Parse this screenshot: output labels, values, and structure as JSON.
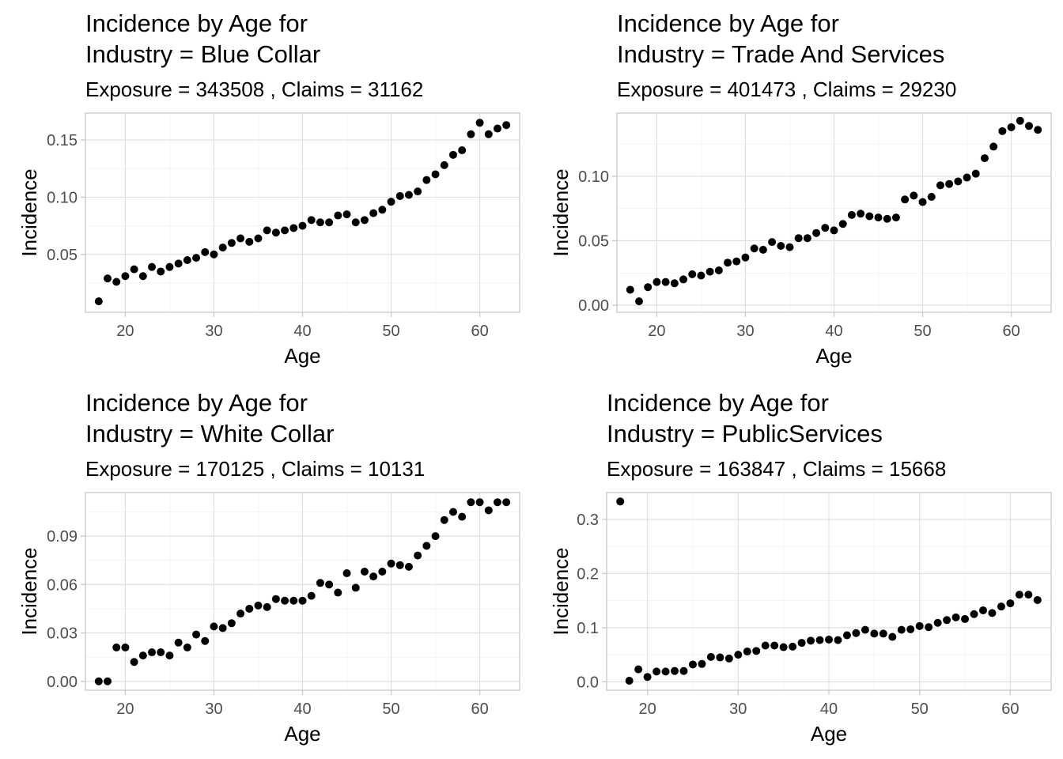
{
  "chart_data": [
    {
      "type": "scatter",
      "title": [
        "Incidence by Age for",
        "Industry = Blue Collar"
      ],
      "subtitle": "Exposure = 343508 , Claims =  31162",
      "xlabel": "Age",
      "ylabel": "Incidence",
      "xlim": [
        15.5,
        64.5
      ],
      "ylim": [
        -0.0006,
        0.1735
      ],
      "xticks": [
        20,
        30,
        40,
        50,
        60
      ],
      "xtick_labels": [
        "20",
        "30",
        "40",
        "50",
        "60"
      ],
      "yticks": [
        0.05,
        0.1,
        0.15
      ],
      "ytick_labels": [
        "0.05",
        "0.10",
        "0.15"
      ],
      "grid": true,
      "legend": "none",
      "x": [
        17,
        18,
        19,
        20,
        21,
        22,
        23,
        24,
        25,
        26,
        27,
        28,
        29,
        30,
        31,
        32,
        33,
        34,
        35,
        36,
        37,
        38,
        39,
        40,
        41,
        42,
        43,
        44,
        45,
        46,
        47,
        48,
        49,
        50,
        51,
        52,
        53,
        54,
        55,
        56,
        57,
        58,
        59,
        60,
        61,
        62,
        63
      ],
      "y": [
        0.009,
        0.029,
        0.026,
        0.031,
        0.037,
        0.031,
        0.039,
        0.035,
        0.039,
        0.042,
        0.045,
        0.047,
        0.052,
        0.05,
        0.056,
        0.06,
        0.064,
        0.061,
        0.064,
        0.071,
        0.069,
        0.071,
        0.073,
        0.075,
        0.08,
        0.078,
        0.078,
        0.084,
        0.085,
        0.078,
        0.08,
        0.086,
        0.089,
        0.096,
        0.101,
        0.102,
        0.105,
        0.115,
        0.12,
        0.128,
        0.137,
        0.141,
        0.155,
        0.165,
        0.155,
        0.16,
        0.163
      ]
    },
    {
      "type": "scatter",
      "title": [
        "Incidence by Age for",
        "Industry = Trade And Services"
      ],
      "subtitle": "Exposure = 401473 , Claims =  29230",
      "xlabel": "Age",
      "ylabel": "Incidence",
      "xlim": [
        15.5,
        64.5
      ],
      "ylim": [
        -0.0055,
        0.149
      ],
      "xticks": [
        20,
        30,
        40,
        50,
        60
      ],
      "xtick_labels": [
        "20",
        "30",
        "40",
        "50",
        "60"
      ],
      "yticks": [
        0.0,
        0.05,
        0.1
      ],
      "ytick_labels": [
        "0.00",
        "0.05",
        "0.10"
      ],
      "grid": true,
      "legend": "none",
      "x": [
        17,
        18,
        19,
        20,
        21,
        22,
        23,
        24,
        25,
        26,
        27,
        28,
        29,
        30,
        31,
        32,
        33,
        34,
        35,
        36,
        37,
        38,
        39,
        40,
        41,
        42,
        43,
        44,
        45,
        46,
        47,
        48,
        49,
        50,
        51,
        52,
        53,
        54,
        55,
        56,
        57,
        58,
        59,
        60,
        61,
        62,
        63
      ],
      "y": [
        0.012,
        0.003,
        0.014,
        0.018,
        0.018,
        0.017,
        0.02,
        0.024,
        0.023,
        0.026,
        0.027,
        0.033,
        0.034,
        0.037,
        0.044,
        0.043,
        0.049,
        0.046,
        0.045,
        0.052,
        0.052,
        0.056,
        0.06,
        0.058,
        0.063,
        0.07,
        0.071,
        0.069,
        0.068,
        0.067,
        0.068,
        0.082,
        0.085,
        0.08,
        0.084,
        0.093,
        0.094,
        0.096,
        0.099,
        0.102,
        0.114,
        0.123,
        0.135,
        0.138,
        0.143,
        0.139,
        0.136
      ]
    },
    {
      "type": "scatter",
      "title": [
        "Incidence by Age for",
        "Industry = White Collar"
      ],
      "subtitle": "Exposure = 170125 , Claims =  10131",
      "xlabel": "Age",
      "ylabel": "Incidence",
      "xlim": [
        15.5,
        64.5
      ],
      "ylim": [
        -0.0055,
        0.117
      ],
      "xticks": [
        20,
        30,
        40,
        50,
        60
      ],
      "xtick_labels": [
        "20",
        "30",
        "40",
        "50",
        "60"
      ],
      "yticks": [
        0.0,
        0.03,
        0.06,
        0.09
      ],
      "ytick_labels": [
        "0.00",
        "0.03",
        "0.06",
        "0.09"
      ],
      "grid": true,
      "legend": "none",
      "x": [
        17,
        18,
        19,
        20,
        21,
        22,
        23,
        24,
        25,
        26,
        27,
        28,
        29,
        30,
        31,
        32,
        33,
        34,
        35,
        36,
        37,
        38,
        39,
        40,
        41,
        42,
        43,
        44,
        45,
        46,
        47,
        48,
        49,
        50,
        51,
        52,
        53,
        54,
        55,
        56,
        57,
        58,
        59,
        60,
        61,
        62,
        63
      ],
      "y": [
        0.0,
        0.0,
        0.021,
        0.021,
        0.012,
        0.016,
        0.018,
        0.018,
        0.016,
        0.024,
        0.021,
        0.029,
        0.025,
        0.034,
        0.033,
        0.036,
        0.042,
        0.045,
        0.047,
        0.046,
        0.051,
        0.05,
        0.05,
        0.05,
        0.053,
        0.061,
        0.06,
        0.055,
        0.067,
        0.058,
        0.068,
        0.065,
        0.068,
        0.073,
        0.072,
        0.071,
        0.078,
        0.084,
        0.09,
        0.1,
        0.105,
        0.102,
        0.111,
        0.111,
        0.106,
        0.111,
        0.111
      ]
    },
    {
      "type": "scatter",
      "title": [
        "Incidence by Age for",
        "Industry = PublicServices"
      ],
      "subtitle": "Exposure = 163847 , Claims =  15668",
      "xlabel": "Age",
      "ylabel": "Incidence",
      "xlim": [
        15.5,
        64.5
      ],
      "ylim": [
        -0.0155,
        0.3495
      ],
      "xticks": [
        20,
        30,
        40,
        50,
        60
      ],
      "xtick_labels": [
        "20",
        "30",
        "40",
        "50",
        "60"
      ],
      "yticks": [
        0.0,
        0.1,
        0.2,
        0.3
      ],
      "ytick_labels": [
        "0.0",
        "0.1",
        "0.2",
        "0.3"
      ],
      "grid": true,
      "legend": "none",
      "x": [
        17,
        18,
        19,
        20,
        21,
        22,
        23,
        24,
        25,
        26,
        27,
        28,
        29,
        30,
        31,
        32,
        33,
        34,
        35,
        36,
        37,
        38,
        39,
        40,
        41,
        42,
        43,
        44,
        45,
        46,
        47,
        48,
        49,
        50,
        51,
        52,
        53,
        54,
        55,
        56,
        57,
        58,
        59,
        60,
        61,
        62,
        63
      ],
      "y": [
        0.333,
        0.002,
        0.023,
        0.009,
        0.019,
        0.019,
        0.02,
        0.02,
        0.032,
        0.033,
        0.046,
        0.045,
        0.043,
        0.05,
        0.056,
        0.057,
        0.067,
        0.067,
        0.064,
        0.065,
        0.072,
        0.076,
        0.077,
        0.078,
        0.077,
        0.086,
        0.09,
        0.096,
        0.089,
        0.089,
        0.083,
        0.096,
        0.097,
        0.103,
        0.101,
        0.109,
        0.114,
        0.119,
        0.116,
        0.125,
        0.132,
        0.127,
        0.139,
        0.145,
        0.161,
        0.161,
        0.151
      ]
    }
  ]
}
